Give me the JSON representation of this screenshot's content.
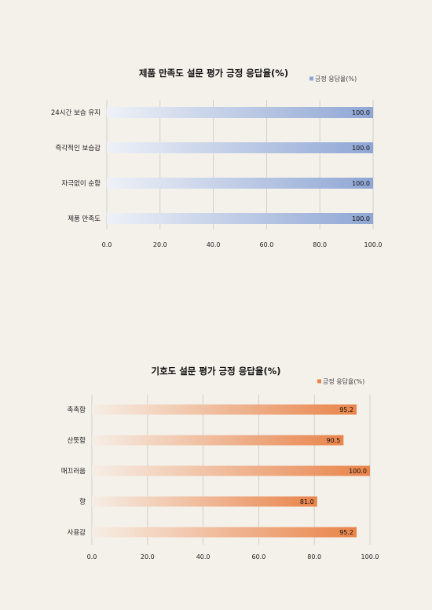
{
  "chart_data": [
    {
      "type": "bar",
      "orientation": "horizontal",
      "title": "제품 만족도 설문 평가 긍정 응답율(%)",
      "categories": [
        "24시간 보습 유지",
        "즉각적인 보습감",
        "자극없이 순함",
        "제품 만족도"
      ],
      "series": [
        {
          "name": "긍정 응답율(%)",
          "values": [
            100.0,
            100.0,
            100.0,
            100.0
          ]
        }
      ],
      "xlim": [
        0,
        100
      ],
      "xticks": [
        "0.0",
        "20.0",
        "40.0",
        "60.0",
        "80.0",
        "100.0"
      ],
      "data_labels": [
        "100.0",
        "100.0",
        "100.0",
        "100.0"
      ],
      "grid": true,
      "legend_position": "top-right",
      "color": "#8fa6d4",
      "color_light": "#eef1f7"
    },
    {
      "type": "bar",
      "orientation": "horizontal",
      "title": "기호도 설문 평가 긍정 응답율(%)",
      "categories": [
        "촉촉함",
        "산뜻함",
        "매끄러움",
        "향",
        "사용감"
      ],
      "series": [
        {
          "name": "긍정 응답율(%)",
          "values": [
            95.2,
            90.5,
            100.0,
            81.0,
            95.2
          ]
        }
      ],
      "xlim": [
        0,
        100
      ],
      "xticks": [
        "0.0",
        "20.0",
        "40.0",
        "60.0",
        "80.0",
        "100.0"
      ],
      "data_labels": [
        "95.2",
        "90.5",
        "100.0",
        "81.0",
        "95.2"
      ],
      "grid": true,
      "legend_position": "top-right",
      "color": "#e9844a",
      "color_light": "#f6eee6"
    }
  ]
}
